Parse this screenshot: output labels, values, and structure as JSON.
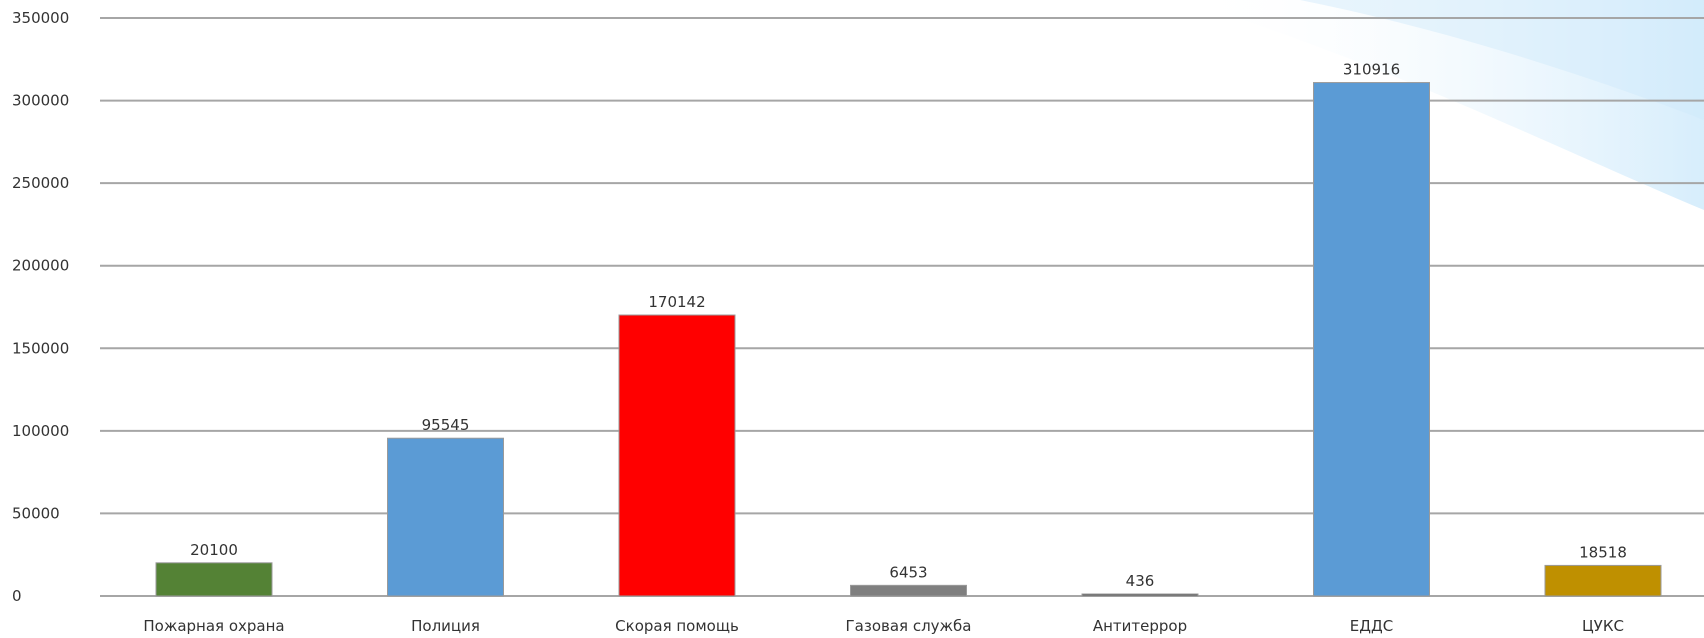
{
  "chart_data": {
    "type": "bar",
    "categories": [
      "Пожарная охрана",
      "Полиция",
      "Скорая помощь",
      "Газовая служба",
      "Антитеррор",
      "ЕДДС",
      "ЦУКС"
    ],
    "values": [
      20100,
      95545,
      170142,
      6453,
      436,
      310916,
      18518
    ],
    "data_labels": [
      "20100",
      "95545",
      "170142",
      "6453",
      "436",
      "310916",
      "18518"
    ],
    "y_ticks": [
      0,
      50000,
      100000,
      150000,
      200000,
      250000,
      300000,
      350000
    ],
    "y_tick_labels": [
      "0",
      "50000",
      "100000",
      "150000",
      "200000",
      "250000",
      "300000",
      "350000"
    ],
    "ylim": [
      0,
      350000
    ],
    "grid": true,
    "legend": "none",
    "bar_colors": [
      "#548235",
      "#5b9bd5",
      "#ff0000",
      "#7f7f7f",
      "#595959",
      "#5b9bd5",
      "#bf9000"
    ],
    "grid_color": "#a6a6a6",
    "background_accent": "#cfe9fb"
  }
}
